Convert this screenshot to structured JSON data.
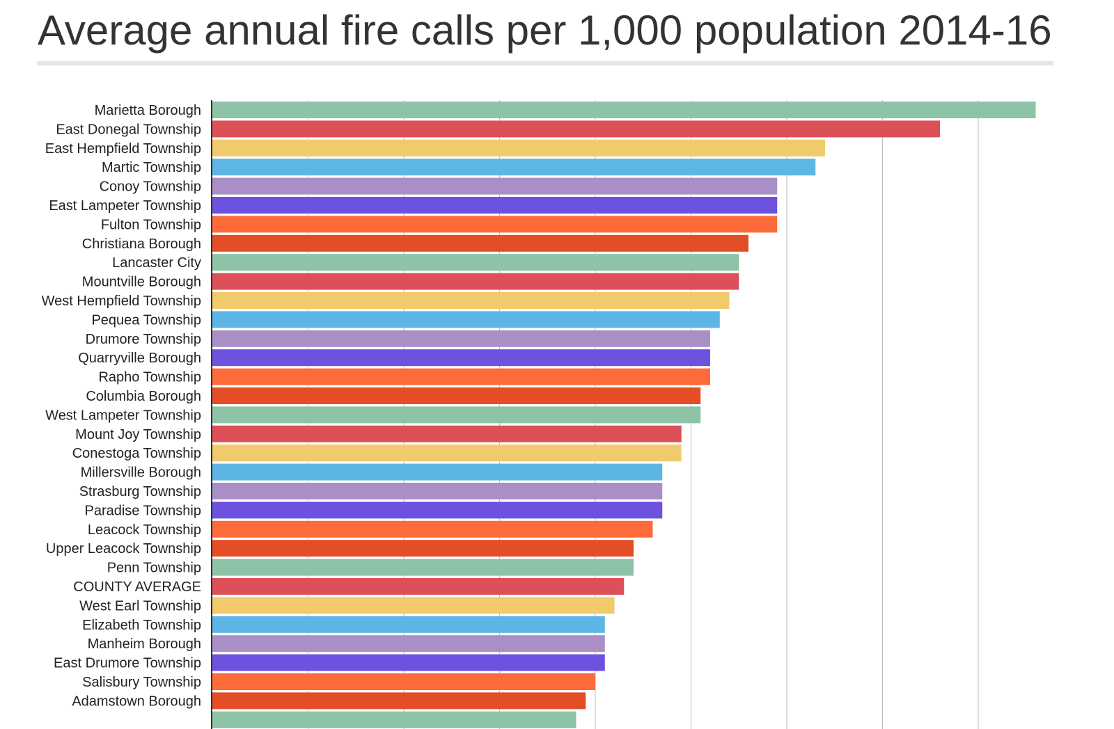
{
  "chart_data": {
    "type": "bar",
    "orientation": "horizontal",
    "title": "Average annual fire calls per 1,000 population 2014-16",
    "xlabel": "",
    "ylabel": "",
    "xlim": [
      0,
      8.6
    ],
    "grid": true,
    "legend": "none",
    "categories": [
      "Marietta Borough",
      "East Donegal Township",
      "East Hempfield Township",
      "Martic Township",
      "Conoy Township",
      "East Lampeter Township",
      "Fulton Township",
      "Christiana Borough",
      "Lancaster City",
      "Mountville Borough",
      "West Hempfield Township",
      "Pequea Township",
      "Drumore Township",
      "Quarryville Borough",
      "Rapho Township",
      "Columbia Borough",
      "West Lampeter Township",
      "Mount Joy Township",
      "Conestoga Township",
      "Millersville Borough",
      "Strasburg Township",
      "Paradise Township",
      "Leacock Township",
      "Upper Leacock Township",
      "Penn Township",
      "COUNTY AVERAGE",
      "West Earl Township",
      "Elizabeth Township",
      "Manheim Borough",
      "East Drumore Township",
      "Salisbury Township",
      "Adamstown Borough"
    ],
    "values": [
      8.6,
      7.6,
      6.4,
      6.3,
      5.9,
      5.9,
      5.9,
      5.6,
      5.5,
      5.5,
      5.4,
      5.3,
      5.2,
      5.2,
      5.2,
      5.1,
      5.1,
      4.9,
      4.9,
      4.7,
      4.7,
      4.7,
      4.6,
      4.4,
      4.4,
      4.3,
      4.2,
      4.1,
      4.1,
      4.1,
      4.0,
      3.9
    ],
    "colors": [
      "#8dc3a7",
      "#db5157",
      "#f1cb6b",
      "#5db6e5",
      "#aa8fc7",
      "#6c52df",
      "#fd6b3a",
      "#e34e26"
    ]
  }
}
